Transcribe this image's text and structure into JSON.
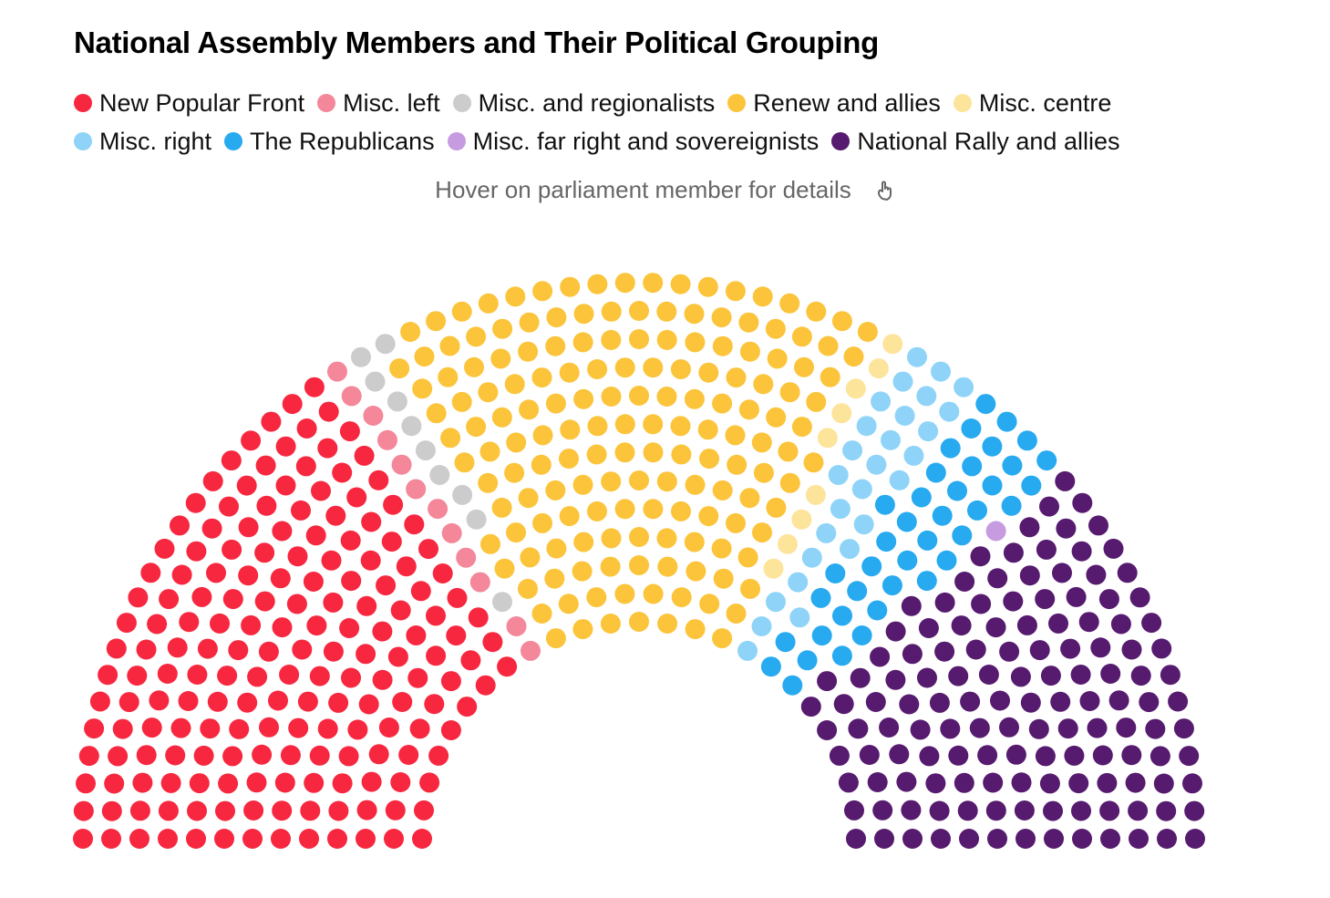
{
  "title": "National Assembly Members and Their Political Grouping",
  "hint": "Hover on parliament member for details",
  "hint_icon": "pointer-hand-icon",
  "chart_data": {
    "type": "parliament",
    "title": "National Assembly Members and Their Political Grouping",
    "total_seats": 577,
    "series": [
      {
        "name": "New Popular Front",
        "seats": 182,
        "color": "#f7273f"
      },
      {
        "name": "Misc. left",
        "seats": 12,
        "color": "#f4879a"
      },
      {
        "name": "Misc. and regionalists",
        "seats": 10,
        "color": "#cccccc"
      },
      {
        "name": "Renew and allies",
        "seats": 163,
        "color": "#fbc43a"
      },
      {
        "name": "Misc. centre",
        "seats": 9,
        "color": "#fde49b"
      },
      {
        "name": "Misc. right",
        "seats": 27,
        "color": "#8fd4f8"
      },
      {
        "name": "The Republicans",
        "seats": 39,
        "color": "#27aaf0"
      },
      {
        "name": "Misc. far right and sovereignists",
        "seats": 1,
        "color": "#c79be0"
      },
      {
        "name": "National Rally and allies",
        "seats": 134,
        "color": "#561a6f"
      }
    ],
    "legend_rows": [
      [
        0,
        1,
        2,
        3,
        4
      ],
      [
        5,
        6,
        7,
        8
      ]
    ]
  }
}
